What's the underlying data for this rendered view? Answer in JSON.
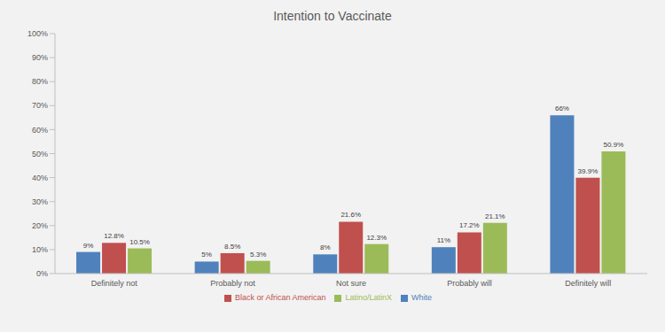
{
  "chart_data": {
    "type": "bar",
    "title": "Intention to Vaccinate",
    "categories": [
      "Definitely not",
      "Probably not",
      "Not sure",
      "Probably will",
      "Definitely will"
    ],
    "series": [
      {
        "name": "White",
        "color": "#4f81bd",
        "values": [
          9,
          5,
          8,
          11,
          66
        ],
        "value_labels": [
          "9%",
          "5%",
          "8%",
          "11%",
          "66%"
        ]
      },
      {
        "name": "Black or African American",
        "color": "#c0504d",
        "values": [
          12.8,
          8.5,
          21.6,
          17.2,
          39.9
        ],
        "value_labels": [
          "12.8%",
          "8.5%",
          "21.6%",
          "17.2%",
          "39.9%"
        ]
      },
      {
        "name": "Latino/LatinX",
        "color": "#9bbb59",
        "values": [
          10.5,
          5.3,
          12.3,
          21.1,
          50.9
        ],
        "value_labels": [
          "10.5%",
          "5.3%",
          "12.3%",
          "21.1%",
          "50.9%"
        ]
      }
    ],
    "ylim": [
      0,
      100
    ],
    "yticks": [
      {
        "value": 0,
        "label": "0%"
      },
      {
        "value": 10,
        "label": "10%"
      },
      {
        "value": 20,
        "label": "20%"
      },
      {
        "value": 30,
        "label": "30%"
      },
      {
        "value": 40,
        "label": "40%"
      },
      {
        "value": 50,
        "label": "50%"
      },
      {
        "value": 60,
        "label": "60%"
      },
      {
        "value": 70,
        "label": "70%"
      },
      {
        "value": 80,
        "label": "80%"
      },
      {
        "value": 90,
        "label": "90%"
      },
      {
        "value": 100,
        "label": "100%"
      }
    ],
    "grid": false,
    "legend": "bottom",
    "data_labels": true
  }
}
